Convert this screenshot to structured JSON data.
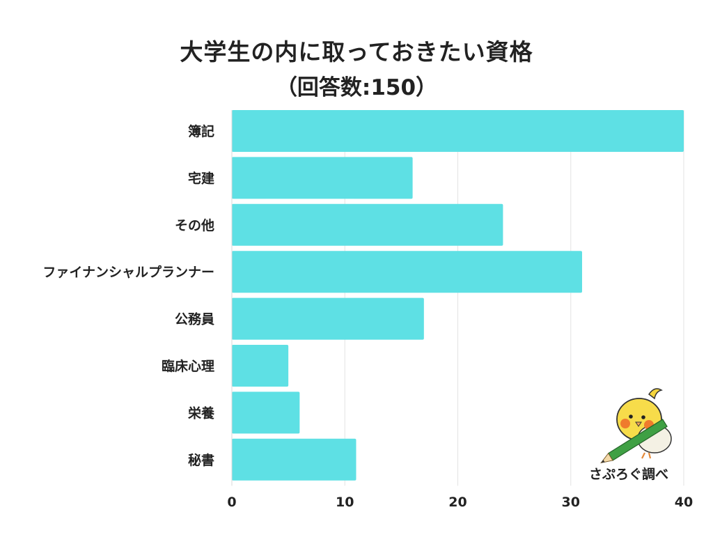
{
  "chart_data": {
    "type": "bar",
    "orientation": "horizontal",
    "title": "大学生の内に取っておきたい資格",
    "subtitle": "（回答数:150）",
    "categories": [
      "簿記",
      "宅建",
      "その他",
      "ファイナンシャルプランナー",
      "公務員",
      "臨床心理",
      "栄養",
      "秘書"
    ],
    "values": [
      40,
      16,
      24,
      31,
      17,
      5,
      6,
      11
    ],
    "xlim": [
      0,
      40
    ],
    "xticks": [
      "0",
      "10",
      "20",
      "30",
      "40"
    ],
    "grid": true,
    "bar_color": "#5ee0e4",
    "grid_color": "#e3e3e3",
    "xlabel": "",
    "ylabel": ""
  },
  "credit": {
    "text": "さぷろぐ調べ",
    "icon": "bird-with-pencil-icon"
  }
}
